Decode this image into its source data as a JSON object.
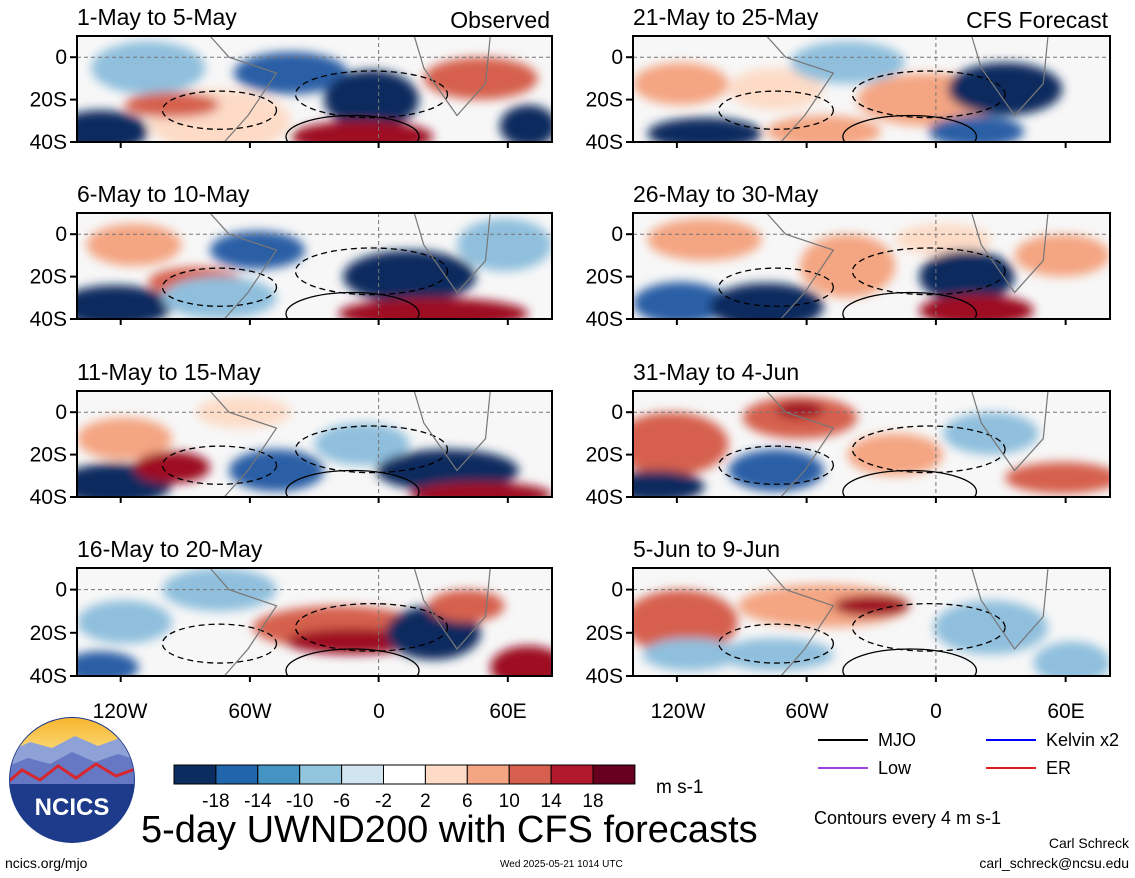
{
  "title": "5-day UWND200 with CFS forecasts",
  "labels": {
    "observed": "Observed",
    "forecast": "CFS Forecast"
  },
  "panels_left": [
    {
      "period": "1-May to 5-May"
    },
    {
      "period": "6-May to 10-May"
    },
    {
      "period": "11-May to 15-May"
    },
    {
      "period": "16-May to 20-May"
    }
  ],
  "panels_right": [
    {
      "period": "21-May to 25-May"
    },
    {
      "period": "26-May to 30-May"
    },
    {
      "period": "31-May to 4-Jun"
    },
    {
      "period": "5-Jun to 9-Jun"
    }
  ],
  "lat_ticks": [
    "0",
    "20S",
    "40S"
  ],
  "lon_ticks": [
    "120W",
    "60W",
    "0",
    "60E"
  ],
  "colorbar": {
    "ticks": [
      "-18",
      "-14",
      "-10",
      "-6",
      "-2",
      "2",
      "6",
      "10",
      "14",
      "18"
    ],
    "unit": "m s-1",
    "colors": [
      "#0b2c5e",
      "#2166ac",
      "#4393c3",
      "#92c5de",
      "#d1e5f0",
      "#ffffff",
      "#fddbc7",
      "#f4a582",
      "#d6604d",
      "#b2182b",
      "#67001f"
    ]
  },
  "legend": {
    "items": [
      {
        "label": "MJO",
        "color": "#000000"
      },
      {
        "label": "Kelvin x2",
        "color": "#0000ff"
      },
      {
        "label": "Low",
        "color": "#a040e0"
      },
      {
        "label": "ER",
        "color": "#e02020"
      }
    ],
    "contour_note": "Contours every 4 m s-1"
  },
  "footer": {
    "logo_text": "NCICS",
    "url": "ncics.org/mjo",
    "timestamp": "Wed 2025-05-21 1014 UTC",
    "author": "Carl Schreck",
    "email": "carl_schreck@ncsu.edu"
  }
}
